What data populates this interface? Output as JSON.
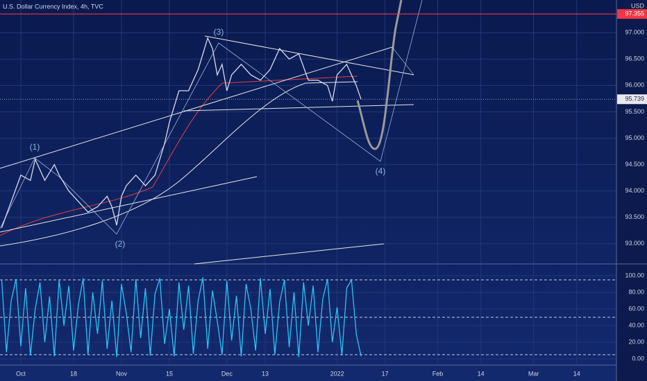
{
  "chart_data": [
    {
      "type": "line",
      "title": "U.S. Dollar Currency Index, 4h, TVC",
      "currency": "USD",
      "x": [
        -4,
        -2,
        0,
        2,
        3,
        5,
        7,
        8,
        10,
        12,
        14,
        16,
        18,
        19,
        20,
        21,
        22,
        24,
        26,
        28,
        30,
        31,
        33,
        35,
        37,
        39,
        40,
        41,
        42,
        43,
        44,
        46,
        48,
        50,
        52,
        54,
        56,
        58,
        60,
        62,
        64,
        65,
        66,
        68,
        69,
        70,
        71
      ],
      "series": [
        {
          "color": "#d8dcef",
          "values": [
            93.3,
            93.8,
            94.3,
            94.2,
            94.6,
            94.2,
            94.5,
            94.3,
            94.0,
            93.8,
            93.6,
            93.7,
            93.9,
            93.7,
            93.35,
            93.9,
            94.1,
            94.3,
            94.1,
            94.3,
            94.9,
            95.3,
            95.9,
            95.9,
            96.3,
            96.9,
            96.7,
            96.2,
            96.4,
            95.9,
            96.2,
            96.4,
            96.2,
            96.1,
            96.3,
            96.7,
            96.5,
            96.6,
            96.1,
            96.1,
            96.0,
            95.7,
            96.2,
            96.4,
            96.2,
            96.0,
            95.739
          ]
        }
      ],
      "xlim": [
        -4.35,
        124.3
      ],
      "xticks": [
        0,
        11,
        21,
        31,
        43,
        51,
        66,
        76,
        87,
        96,
        107,
        116
      ],
      "ylim": [
        92.63,
        97.62
      ],
      "yticks": [
        {
          "value": 93,
          "label": "93.000"
        },
        {
          "value": 93.5,
          "label": "93.500"
        },
        {
          "value": 94,
          "label": "94.000"
        },
        {
          "value": 94.5,
          "label": "94.500"
        },
        {
          "value": 95,
          "label": "95.000"
        },
        {
          "value": 95.5,
          "label": "95.500"
        },
        {
          "value": 96,
          "label": "96.000"
        },
        {
          "value": 96.5,
          "label": "96.500"
        },
        {
          "value": 97,
          "label": "97.000"
        }
      ],
      "grid": true,
      "reference_line": 97.355,
      "reference_color": "#f23645",
      "annotations": [
        "(1)",
        "(2)",
        "(3)",
        "(4)"
      ]
    },
    {
      "type": "line",
      "x": [
        -4,
        -3,
        -2,
        -1,
        0,
        1,
        2,
        3,
        4,
        5,
        6,
        7,
        8,
        9,
        10,
        11,
        12,
        13,
        14,
        15,
        16,
        17,
        18,
        19,
        20,
        21,
        22,
        23,
        24,
        25,
        26,
        27,
        28,
        29,
        30,
        31,
        32,
        33,
        34,
        35,
        36,
        37,
        38,
        39,
        40,
        41,
        42,
        43,
        44,
        45,
        46,
        47,
        48,
        49,
        50,
        51,
        52,
        53,
        54,
        55,
        56,
        57,
        58,
        59,
        60,
        61,
        62,
        63,
        64,
        65,
        66,
        67,
        68,
        69,
        70,
        71
      ],
      "series": [
        {
          "color": "#29c5f6",
          "values": [
            95,
            8,
            70,
            96,
            15,
            85,
            4,
            60,
            92,
            20,
            75,
            3,
            95,
            40,
            88,
            10,
            65,
            97,
            5,
            80,
            30,
            94,
            12,
            70,
            2,
            90,
            55,
            8,
            96,
            25,
            85,
            4,
            78,
            97,
            18,
            60,
            3,
            92,
            35,
            88,
            6,
            70,
            98,
            12,
            82,
            45,
            5,
            94,
            22,
            76,
            3,
            90,
            60,
            10,
            97,
            30,
            84,
            5,
            68,
            95,
            14,
            80,
            2,
            92,
            40,
            88,
            8,
            72,
            96,
            20,
            62,
            4,
            85,
            95,
            30,
            3
          ]
        }
      ],
      "xlim": [
        -4.35,
        124.3
      ],
      "xticks": [
        {
          "value": 0,
          "label": "Oct"
        },
        {
          "value": 11,
          "label": "18"
        },
        {
          "value": 21,
          "label": "Nov"
        },
        {
          "value": 31,
          "label": "15"
        },
        {
          "value": 43,
          "label": "Dec"
        },
        {
          "value": 51,
          "label": "13"
        },
        {
          "value": 66,
          "label": "2022"
        },
        {
          "value": 76,
          "label": "17"
        },
        {
          "value": 87,
          "label": "Feb"
        },
        {
          "value": 96,
          "label": "14"
        },
        {
          "value": 107,
          "label": "Mar"
        },
        {
          "value": 116,
          "label": "14"
        }
      ],
      "ylim": [
        -5.8,
        113.3
      ],
      "yticks": [
        {
          "value": 0,
          "label": "0.00"
        },
        {
          "value": 20,
          "label": "20.00"
        },
        {
          "value": 40,
          "label": "40.00"
        },
        {
          "value": 60,
          "label": "60.00"
        },
        {
          "value": 80,
          "label": "80.00"
        },
        {
          "value": 100,
          "label": "100.00"
        }
      ],
      "levels": [
        95,
        50,
        5
      ],
      "grid": true
    }
  ]
}
